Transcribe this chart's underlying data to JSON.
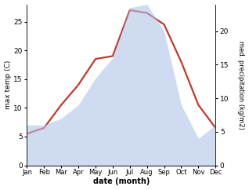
{
  "months": [
    "Jan",
    "Feb",
    "Mar",
    "Apr",
    "May",
    "Jun",
    "Jul",
    "Aug",
    "Sep",
    "Oct",
    "Nov",
    "Dec"
  ],
  "temperature": [
    5.5,
    6.5,
    10.5,
    14.0,
    18.5,
    19.0,
    27.0,
    26.5,
    24.5,
    18.0,
    10.5,
    6.5
  ],
  "precipitation": [
    6.0,
    6.0,
    7.0,
    9.0,
    13.0,
    16.0,
    23.5,
    24.0,
    20.0,
    9.0,
    4.0,
    6.0
  ],
  "temp_color": "#c0392b",
  "precip_color": "#b0c4e8",
  "ylabel_left": "max temp (C)",
  "ylabel_right": "med. precipitation (kg/m2)",
  "xlabel": "date (month)",
  "ylim_left": [
    0,
    28
  ],
  "ylim_right": [
    0,
    24
  ],
  "yticks_left": [
    0,
    5,
    10,
    15,
    20,
    25
  ],
  "yticks_right": [
    0,
    5,
    10,
    15,
    20
  ],
  "precip_scale_factor": 1.2,
  "background_color": "#ffffff"
}
